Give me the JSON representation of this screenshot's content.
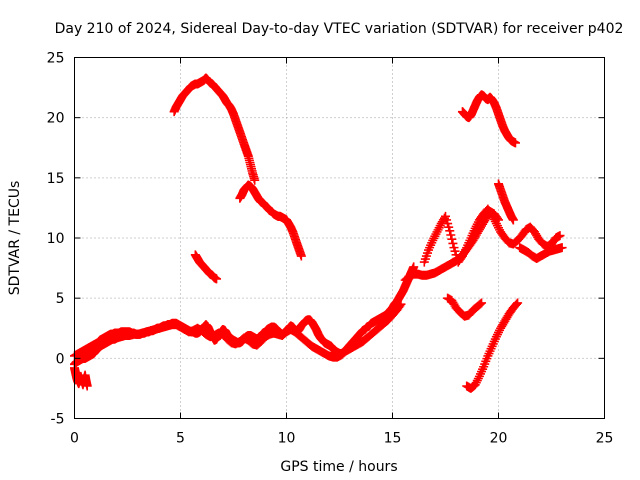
{
  "chart_data": {
    "type": "scatter",
    "title": "Day 210 of 2024, Sidereal Day-to-day VTEC variation (SDTVAR) for receiver p402",
    "xlabel": "GPS time / hours",
    "ylabel": "SDTVAR / TECUs",
    "xlim": [
      0,
      25
    ],
    "ylim": [
      -5,
      25
    ],
    "x_ticks": [
      "0",
      "5",
      "10",
      "15",
      "20",
      "25"
    ],
    "y_ticks": [
      "-5",
      "0",
      "5",
      "10",
      "15",
      "20",
      "25"
    ],
    "grid": true,
    "legend": "none",
    "marker": "+",
    "color": "#ff0000",
    "series": [
      {
        "x": [
          0.0,
          0.1,
          0.2,
          0.3,
          0.4,
          0.5,
          0.6,
          0.7,
          0.8,
          0.9,
          1.0,
          1.1,
          1.2,
          1.3,
          1.4,
          1.5,
          1.6,
          1.7,
          1.8,
          1.9,
          2.0,
          2.1,
          2.2,
          2.3,
          2.4,
          2.5,
          2.6,
          2.7,
          2.8,
          2.9,
          3.0,
          3.1,
          3.2,
          3.3,
          3.4,
          3.5,
          3.6,
          3.7,
          3.8,
          3.9,
          4.0,
          4.1,
          4.2,
          4.3,
          4.4,
          4.5,
          4.6,
          4.7,
          4.8,
          4.9,
          5.0,
          5.1,
          5.2,
          5.3,
          5.4,
          5.5,
          5.6,
          5.7,
          5.8,
          5.9,
          6.0,
          6.1,
          6.2,
          6.3,
          6.4,
          6.5,
          6.6,
          6.7,
          6.8,
          6.9,
          7.0,
          7.1,
          7.2,
          7.3,
          7.4,
          7.5,
          7.6,
          7.7,
          7.8,
          7.9,
          8.0,
          8.1,
          8.2,
          8.3,
          8.4,
          8.5,
          8.6,
          8.7,
          8.8,
          8.9,
          9.0,
          9.1,
          9.2,
          9.3,
          9.4,
          9.5,
          9.6,
          9.7,
          9.8,
          9.9,
          10.0,
          10.1,
          10.2,
          10.3,
          10.4,
          10.5,
          10.6,
          10.7,
          10.8,
          10.9,
          11.0,
          11.1,
          11.2,
          11.3,
          11.4,
          11.5,
          11.6,
          11.7,
          11.8,
          11.9,
          12.0,
          12.1,
          12.2,
          12.3,
          12.4,
          12.5,
          12.6,
          12.7,
          12.8,
          12.9,
          13.0,
          13.1,
          13.2,
          13.3,
          13.4,
          13.5,
          13.6,
          13.7,
          13.8,
          13.9,
          14.0,
          14.1,
          14.2,
          14.3,
          14.4,
          14.5,
          14.6,
          14.7,
          14.8,
          14.9,
          15.0,
          15.1,
          15.2,
          15.3,
          15.4,
          15.5,
          15.6,
          15.7,
          15.8,
          15.9,
          16.0
        ],
        "y": [
          0.2,
          0.3,
          0.4,
          0.5,
          0.6,
          0.7,
          0.8,
          0.9,
          1.0,
          1.1,
          1.2,
          1.3,
          1.5,
          1.6,
          1.7,
          1.8,
          1.9,
          2.0,
          2.0,
          2.1,
          2.1,
          2.1,
          2.2,
          2.2,
          2.2,
          2.2,
          2.2,
          2.1,
          2.1,
          2.0,
          2.0,
          2.0,
          2.1,
          2.1,
          2.2,
          2.2,
          2.3,
          2.3,
          2.4,
          2.5,
          2.5,
          2.6,
          2.7,
          2.7,
          2.8,
          2.8,
          2.9,
          2.9,
          2.9,
          2.8,
          2.7,
          2.6,
          2.5,
          2.4,
          2.3,
          2.2,
          2.2,
          2.1,
          2.1,
          2.2,
          2.4,
          2.6,
          2.8,
          2.6,
          2.2,
          1.8,
          1.5,
          1.6,
          1.9,
          2.2,
          2.4,
          2.3,
          2.0,
          1.8,
          1.6,
          1.5,
          1.4,
          1.3,
          1.3,
          1.4,
          1.6,
          1.8,
          1.9,
          1.9,
          1.8,
          1.7,
          1.6,
          1.7,
          1.9,
          2.1,
          2.2,
          2.4,
          2.5,
          2.6,
          2.6,
          2.5,
          2.3,
          2.1,
          2.0,
          2.1,
          2.3,
          2.5,
          2.7,
          2.6,
          2.4,
          2.2,
          2.4,
          2.7,
          2.9,
          3.1,
          3.2,
          3.2,
          3.0,
          2.7,
          2.4,
          2.0,
          1.7,
          1.5,
          1.3,
          1.2,
          1.1,
          1.0,
          0.8,
          0.6,
          0.5,
          0.4,
          0.4,
          0.5,
          0.7,
          0.9,
          1.1,
          1.3,
          1.5,
          1.7,
          1.9,
          2.1,
          2.3,
          2.4,
          2.6,
          2.7,
          2.9,
          3.0,
          3.1,
          3.2,
          3.3,
          3.4,
          3.5,
          3.6,
          3.8,
          4.0,
          4.2,
          4.5,
          4.7,
          5.0,
          5.3,
          5.6,
          6.0,
          6.4,
          6.8,
          7.2,
          7.6
        ]
      },
      {
        "x": [
          0.0,
          0.1,
          0.2,
          0.3,
          0.4,
          0.5,
          0.6,
          0.7,
          0.8,
          0.9,
          1.0,
          1.1,
          1.2,
          1.3,
          1.4,
          1.5,
          1.6,
          1.7,
          1.8,
          1.9,
          2.0,
          2.2,
          2.4,
          2.6,
          2.8,
          3.0,
          3.2,
          3.4,
          3.6,
          3.8,
          4.0,
          4.2,
          4.4,
          4.6,
          4.8,
          5.0,
          5.2,
          5.4,
          5.6,
          5.8,
          6.0,
          6.2,
          6.4,
          6.6,
          6.8,
          7.0,
          7.2,
          7.4,
          7.6,
          7.8,
          8.0,
          8.2,
          8.4,
          8.6,
          8.8,
          9.0,
          9.2,
          9.4,
          9.6,
          9.8,
          10.0,
          10.2,
          10.4,
          10.6,
          10.8,
          11.0,
          11.2,
          11.4,
          11.6,
          11.8,
          12.0,
          12.2,
          12.4,
          12.6,
          12.8,
          13.0,
          13.2,
          13.4,
          13.6,
          13.8,
          14.0,
          14.2,
          14.4,
          14.6,
          14.8,
          15.0,
          15.2,
          15.4
        ],
        "y": [
          -0.5,
          -0.3,
          -0.2,
          -0.1,
          0.0,
          0.0,
          0.1,
          0.2,
          0.3,
          0.4,
          0.6,
          0.8,
          1.0,
          1.1,
          1.2,
          1.3,
          1.4,
          1.5,
          1.6,
          1.6,
          1.7,
          1.8,
          1.9,
          1.9,
          2.0,
          2.0,
          2.1,
          2.2,
          2.3,
          2.4,
          2.5,
          2.6,
          2.7,
          2.8,
          2.8,
          2.6,
          2.4,
          2.2,
          2.3,
          2.5,
          2.3,
          2.0,
          1.8,
          1.9,
          2.1,
          2.0,
          1.6,
          1.3,
          1.2,
          1.4,
          1.7,
          1.5,
          1.2,
          1.1,
          1.4,
          1.8,
          2.0,
          2.1,
          2.0,
          1.9,
          2.2,
          2.4,
          2.2,
          1.9,
          1.6,
          1.3,
          1.0,
          0.8,
          0.6,
          0.4,
          0.2,
          0.1,
          0.1,
          0.3,
          0.6,
          0.8,
          1.0,
          1.2,
          1.4,
          1.7,
          2.0,
          2.3,
          2.6,
          2.9,
          3.2,
          3.6,
          4.0,
          4.5
        ]
      },
      {
        "x": [
          0.0,
          0.05,
          0.1,
          0.15,
          0.2,
          0.25,
          0.3,
          0.35,
          0.4,
          0.45,
          0.5,
          0.55,
          0.6
        ],
        "y": [
          -0.8,
          -1.2,
          -1.6,
          -1.9,
          -2.1,
          -1.8,
          -1.5,
          -1.9,
          -2.2,
          -1.7,
          -1.4,
          -1.9,
          -2.3
        ]
      },
      {
        "x": [
          4.7,
          4.8,
          4.9,
          5.0,
          5.1,
          5.2,
          5.3,
          5.4,
          5.5,
          5.6,
          5.7,
          5.8,
          5.9,
          6.0,
          6.1,
          6.2,
          6.3,
          6.4,
          6.5,
          6.6,
          6.7,
          6.8,
          6.9,
          7.0,
          7.1,
          7.2,
          7.3,
          7.4,
          7.5,
          7.6,
          7.7,
          7.8,
          7.9,
          8.0,
          8.1,
          8.2,
          8.3,
          8.4,
          8.5
        ],
        "y": [
          20.5,
          20.9,
          21.2,
          21.5,
          21.8,
          22.0,
          22.2,
          22.4,
          22.6,
          22.7,
          22.8,
          22.8,
          22.9,
          23.0,
          23.1,
          23.3,
          23.1,
          22.9,
          22.8,
          22.6,
          22.4,
          22.2,
          22.0,
          21.8,
          21.5,
          21.2,
          21.0,
          20.7,
          20.3,
          19.8,
          19.3,
          18.8,
          18.3,
          17.8,
          17.3,
          16.8,
          16.1,
          15.4,
          14.8
        ]
      },
      {
        "x": [
          7.8,
          7.9,
          8.0,
          8.1,
          8.2,
          8.3,
          8.4,
          8.5,
          8.6,
          8.7,
          8.8,
          8.9,
          9.0,
          9.1,
          9.2,
          9.3,
          9.4,
          9.5,
          9.6,
          9.7,
          9.8,
          9.9,
          10.0,
          10.1,
          10.2,
          10.3,
          10.4,
          10.5,
          10.6,
          10.7
        ],
        "y": [
          13.3,
          13.6,
          14.0,
          14.2,
          14.4,
          14.3,
          14.1,
          13.8,
          13.5,
          13.2,
          13.0,
          12.9,
          12.7,
          12.5,
          12.3,
          12.2,
          12.0,
          11.9,
          11.8,
          11.8,
          11.7,
          11.6,
          11.5,
          11.2,
          10.9,
          10.5,
          10.0,
          9.5,
          9.0,
          8.5
        ]
      },
      {
        "x": [
          5.7,
          5.8,
          5.9,
          6.0,
          6.1,
          6.2,
          6.3,
          6.4,
          6.5,
          6.6,
          6.7
        ],
        "y": [
          8.6,
          8.3,
          8.0,
          7.8,
          7.6,
          7.4,
          7.2,
          7.0,
          6.9,
          6.7,
          6.6
        ]
      },
      {
        "x": [
          15.6,
          15.8,
          16.0,
          16.2,
          16.4,
          16.6,
          16.8,
          17.0,
          17.2,
          17.4,
          17.6,
          17.8,
          18.0,
          18.2,
          18.4,
          18.6,
          18.8,
          19.0,
          19.2,
          19.4,
          19.6,
          19.8,
          20.0
        ],
        "y": [
          6.5,
          6.8,
          7.0,
          7.0,
          6.9,
          6.9,
          7.0,
          7.1,
          7.3,
          7.5,
          7.7,
          7.9,
          8.1,
          8.4,
          8.8,
          9.3,
          9.8,
          10.4,
          11.0,
          11.6,
          12.2,
          12.0,
          11.5
        ]
      },
      {
        "x": [
          16.5,
          16.7,
          16.9,
          17.1,
          17.3,
          17.5,
          17.7,
          17.9,
          18.1,
          18.3,
          18.5,
          18.7,
          18.9,
          19.1,
          19.3,
          19.5,
          19.7,
          19.9,
          20.1,
          20.3,
          20.5,
          20.7,
          20.9,
          21.1,
          21.3,
          21.5,
          21.7,
          21.9,
          22.1,
          22.3,
          22.5,
          22.7,
          22.9
        ],
        "y": [
          8.0,
          9.0,
          9.8,
          10.5,
          11.2,
          11.8,
          10.6,
          9.2,
          8.0,
          8.5,
          9.2,
          10.0,
          10.8,
          11.5,
          12.0,
          12.4,
          11.9,
          11.2,
          10.5,
          10.0,
          9.6,
          9.5,
          9.8,
          10.2,
          10.7,
          10.9,
          10.5,
          9.9,
          9.5,
          9.3,
          9.5,
          10.0,
          10.2
        ]
      },
      {
        "x": [
          20.0,
          20.1,
          20.2,
          20.3,
          20.4,
          20.5,
          20.6,
          20.7
        ],
        "y": [
          14.5,
          14.0,
          13.5,
          13.0,
          12.6,
          12.2,
          11.8,
          11.5
        ]
      },
      {
        "x": [
          21.0,
          21.2,
          21.4,
          21.6,
          21.8,
          22.0,
          22.2,
          22.4,
          22.6,
          22.8,
          23.0
        ],
        "y": [
          9.2,
          9.0,
          8.8,
          8.5,
          8.3,
          8.5,
          8.7,
          8.9,
          9.0,
          9.1,
          9.2
        ]
      },
      {
        "x": [
          18.3,
          18.4,
          18.5,
          18.6,
          18.7,
          18.8,
          18.9,
          19.0,
          19.1,
          19.2,
          19.3,
          19.4,
          19.5,
          19.6,
          19.7,
          19.8,
          19.9,
          20.0,
          20.1,
          20.2,
          20.3,
          20.4,
          20.5,
          20.6,
          20.7,
          20.8
        ],
        "y": [
          20.5,
          20.3,
          20.1,
          20.0,
          20.2,
          20.6,
          21.0,
          21.4,
          21.7,
          21.9,
          21.8,
          21.6,
          21.5,
          21.7,
          21.5,
          21.2,
          20.8,
          20.3,
          19.8,
          19.3,
          18.9,
          18.6,
          18.3,
          18.1,
          18.0,
          17.9
        ]
      },
      {
        "x": [
          17.6,
          17.8,
          18.0,
          18.2,
          18.4,
          18.6,
          18.8,
          19.0,
          19.2
        ],
        "y": [
          5.0,
          4.8,
          4.2,
          3.8,
          3.5,
          3.6,
          4.0,
          4.3,
          4.6
        ]
      },
      {
        "x": [
          18.5,
          18.7,
          18.9,
          19.1,
          19.3,
          19.5,
          19.7,
          19.9,
          20.1,
          20.3,
          20.5,
          20.7,
          20.9
        ],
        "y": [
          -2.3,
          -2.5,
          -2.2,
          -1.5,
          -0.7,
          0.2,
          1.0,
          1.8,
          2.5,
          3.1,
          3.7,
          4.2,
          4.6
        ]
      }
    ]
  }
}
